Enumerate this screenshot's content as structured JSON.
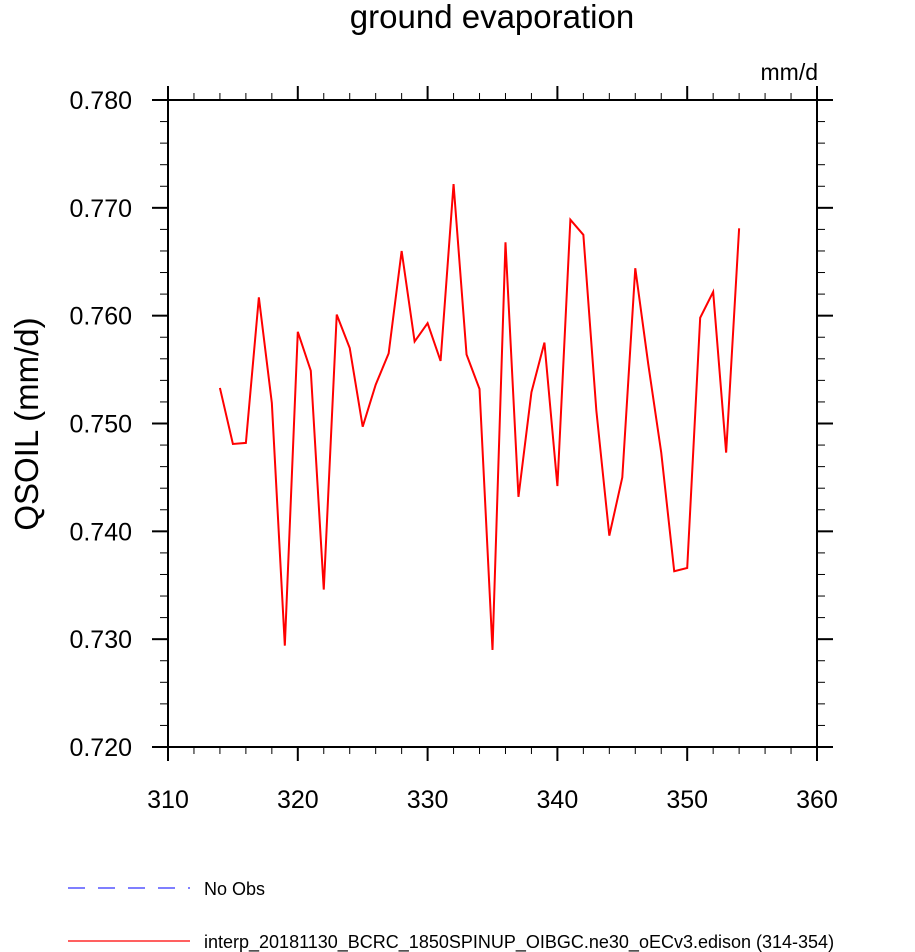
{
  "chart_data": {
    "type": "line",
    "title": "ground evaporation",
    "units": "mm/d",
    "ylabel": "QSOIL  (mm/d)",
    "xlabel": "",
    "xlim": [
      310,
      360
    ],
    "ylim": [
      0.72,
      0.78
    ],
    "x_ticks": [
      310,
      320,
      330,
      340,
      350,
      360
    ],
    "x_tick_labels": [
      "310",
      "320",
      "330",
      "340",
      "350",
      "360"
    ],
    "y_ticks": [
      0.72,
      0.73,
      0.74,
      0.75,
      0.76,
      0.77,
      0.78
    ],
    "y_tick_labels": [
      "0.720",
      "0.730",
      "0.740",
      "0.750",
      "0.760",
      "0.770",
      "0.780"
    ],
    "grid": false,
    "series": [
      {
        "name": "interp_20181130_BCRC_1850SPINUP_OIBGC.ne30_oECv3.edison (314-354)",
        "color": "#ff0000",
        "dash": "solid",
        "x": [
          314,
          315,
          316,
          317,
          318,
          319,
          320,
          321,
          322,
          323,
          324,
          325,
          326,
          327,
          328,
          329,
          330,
          331,
          332,
          333,
          334,
          335,
          336,
          337,
          338,
          339,
          340,
          341,
          342,
          343,
          344,
          345,
          346,
          347,
          348,
          349,
          350,
          351,
          352,
          353,
          354
        ],
        "values": [
          0.7533,
          0.7481,
          0.7482,
          0.7617,
          0.7519,
          0.7294,
          0.7585,
          0.7549,
          0.7346,
          0.7601,
          0.757,
          0.7497,
          0.7536,
          0.7565,
          0.766,
          0.7576,
          0.7593,
          0.7558,
          0.7722,
          0.7564,
          0.7532,
          0.729,
          0.7668,
          0.7432,
          0.7529,
          0.7575,
          0.7442,
          0.7689,
          0.7675,
          0.7512,
          0.7396,
          0.745,
          0.7644,
          0.7555,
          0.7473,
          0.7363,
          0.7366,
          0.7598,
          0.7622,
          0.7473,
          0.7681
        ]
      }
    ],
    "legend": {
      "placement": "bottom",
      "entries": [
        {
          "label": "No Obs",
          "color": "#3333ff",
          "dash": "dashed"
        },
        {
          "label": "interp_20181130_BCRC_1850SPINUP_OIBGC.ne30_oECv3.edison (314-354)",
          "color": "#ff0000",
          "dash": "solid"
        }
      ]
    }
  }
}
